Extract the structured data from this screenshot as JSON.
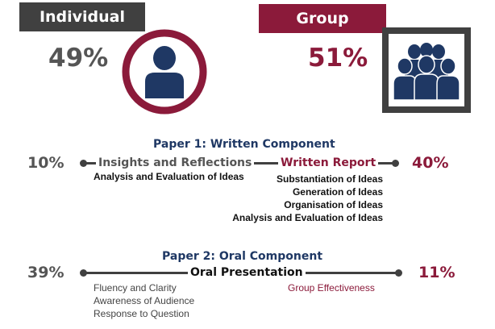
{
  "colors": {
    "dark": "#404040",
    "maroon": "#8b1a3a",
    "navy": "#1f3864",
    "text_gray": "#555555"
  },
  "individual": {
    "label": "Individual",
    "percent": "49%",
    "icon": "person-icon"
  },
  "group": {
    "label": "Group",
    "percent": "51%",
    "icon": "group-icon"
  },
  "paper1": {
    "heading": "Paper 1: Written Component",
    "left_percent": "10%",
    "right_percent": "40%",
    "left_label": "Insights and Reflections",
    "right_label": "Written Report",
    "left_items": [
      "Analysis and Evaluation of Ideas"
    ],
    "right_items": [
      "Substantiation of Ideas",
      "Generation of Ideas",
      "Organisation of Ideas",
      "Analysis and Evaluation of Ideas"
    ]
  },
  "paper2": {
    "heading": "Paper 2: Oral Component",
    "left_percent": "39%",
    "right_percent": "11%",
    "center_label": "Oral Presentation",
    "left_items": [
      "Fluency and Clarity",
      "Awareness of Audience",
      "Response to Question"
    ],
    "right_items": [
      "Group Effectiveness"
    ]
  }
}
